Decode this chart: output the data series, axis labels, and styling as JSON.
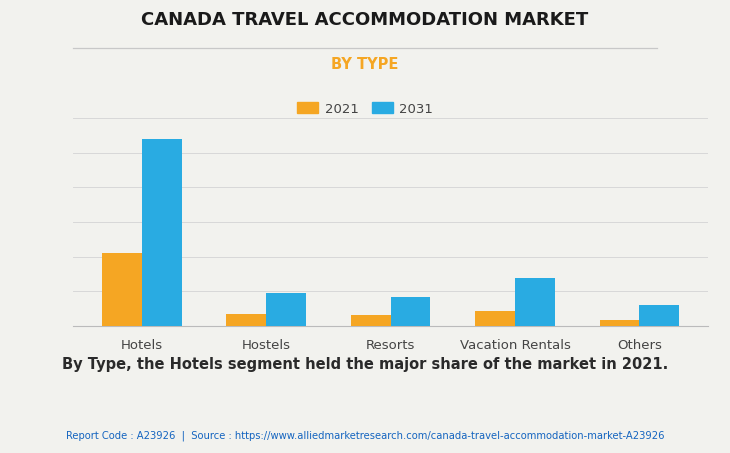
{
  "title": "CANADA TRAVEL ACCOMMODATION MARKET",
  "subtitle": "BY TYPE",
  "categories": [
    "Hotels",
    "Hostels",
    "Resorts",
    "Vacation Rentals",
    "Others"
  ],
  "values_2021": [
    10.5,
    1.8,
    1.6,
    2.2,
    0.9
  ],
  "values_2031": [
    27.0,
    4.8,
    4.2,
    7.0,
    3.0
  ],
  "color_2021": "#F5A623",
  "color_2031": "#29ABE2",
  "background_color": "#F2F2EE",
  "title_color": "#1a1a1a",
  "subtitle_color": "#F5A623",
  "legend_labels": [
    "2021",
    "2031"
  ],
  "bar_width": 0.32,
  "ylim": [
    0,
    30
  ],
  "grid_color": "#d8d8d8",
  "annotation_text": "By Type, the Hotels segment held the major share of the market in 2021.",
  "footer_text": "Report Code : A23926  |  Source : https://www.alliedmarketresearch.com/canada-travel-accommodation-market-A23926",
  "footer_color": "#1565C0",
  "annotation_color": "#2a2a2a"
}
